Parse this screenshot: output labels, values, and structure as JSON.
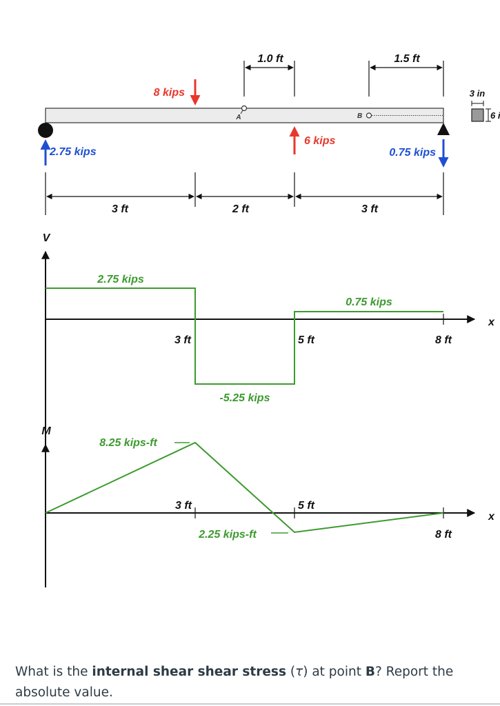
{
  "colors": {
    "red": "#e8372a",
    "blue": "#1f4fd1",
    "green": "#3c9a2e",
    "black": "#111111",
    "beam_fill": "#ececec",
    "question_text": "#2d3b45"
  },
  "beam": {
    "load_8kips": "8 kips",
    "load_6kips": "6 kips",
    "reaction_left": "2.75 kips",
    "reaction_right": "0.75 kips",
    "point_a": "A",
    "point_b": "B",
    "dim_a_offset": "1.0 ft",
    "dim_b_offset": "1.5 ft",
    "span_1": "3 ft",
    "span_2": "2 ft",
    "span_3": "3 ft",
    "section_width": "3 in",
    "section_height_partial": "6 i"
  },
  "shear_diagram": {
    "axis_v": "V",
    "axis_x": "x",
    "value_1": "2.75 kips",
    "value_2": "-5.25 kips",
    "value_3": "0.75 kips",
    "tick_3": "3 ft",
    "tick_5": "5 ft",
    "tick_8": "8 ft"
  },
  "moment_diagram": {
    "axis_m": "M",
    "axis_x": "x",
    "peak": "8.25 kips-ft",
    "trough": "2.25 kips-ft",
    "tick_3": "3 ft",
    "tick_5": "5 ft",
    "tick_8": "8 ft"
  },
  "question": {
    "part1": "What is the ",
    "bold1": "internal shear shear stress",
    "part2": " (",
    "tau": "τ",
    "part3": ") at point ",
    "bold2": "B",
    "part4": "? Report the absolute value."
  }
}
